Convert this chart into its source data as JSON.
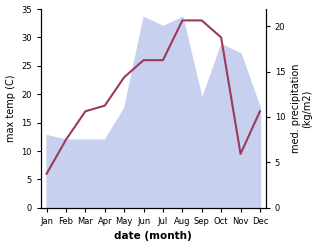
{
  "months": [
    "Jan",
    "Feb",
    "Mar",
    "Apr",
    "May",
    "Jun",
    "Jul",
    "Aug",
    "Sep",
    "Oct",
    "Nov",
    "Dec"
  ],
  "month_positions": [
    0,
    1,
    2,
    3,
    4,
    5,
    6,
    7,
    8,
    9,
    10,
    11
  ],
  "temperature": [
    6,
    12,
    17,
    18,
    23,
    26,
    26,
    33,
    33,
    30,
    9.5,
    17
  ],
  "precipitation": [
    8,
    7.5,
    7.5,
    7.5,
    11,
    21,
    20,
    21,
    12,
    18,
    17,
    11
  ],
  "temp_color": "#9b3a5a",
  "precip_fill_color": "#c8d0f0",
  "temp_ylim": [
    0,
    35
  ],
  "temp_yticks": [
    0,
    5,
    10,
    15,
    20,
    25,
    30,
    35
  ],
  "precip_ylim": [
    0,
    21.875
  ],
  "precip_yticks": [
    0,
    5,
    10,
    15,
    20
  ],
  "xlabel": "date (month)",
  "ylabel_left": "max temp (C)",
  "ylabel_right": "med. precipitation\n(kg/m2)",
  "background_color": "#ffffff"
}
